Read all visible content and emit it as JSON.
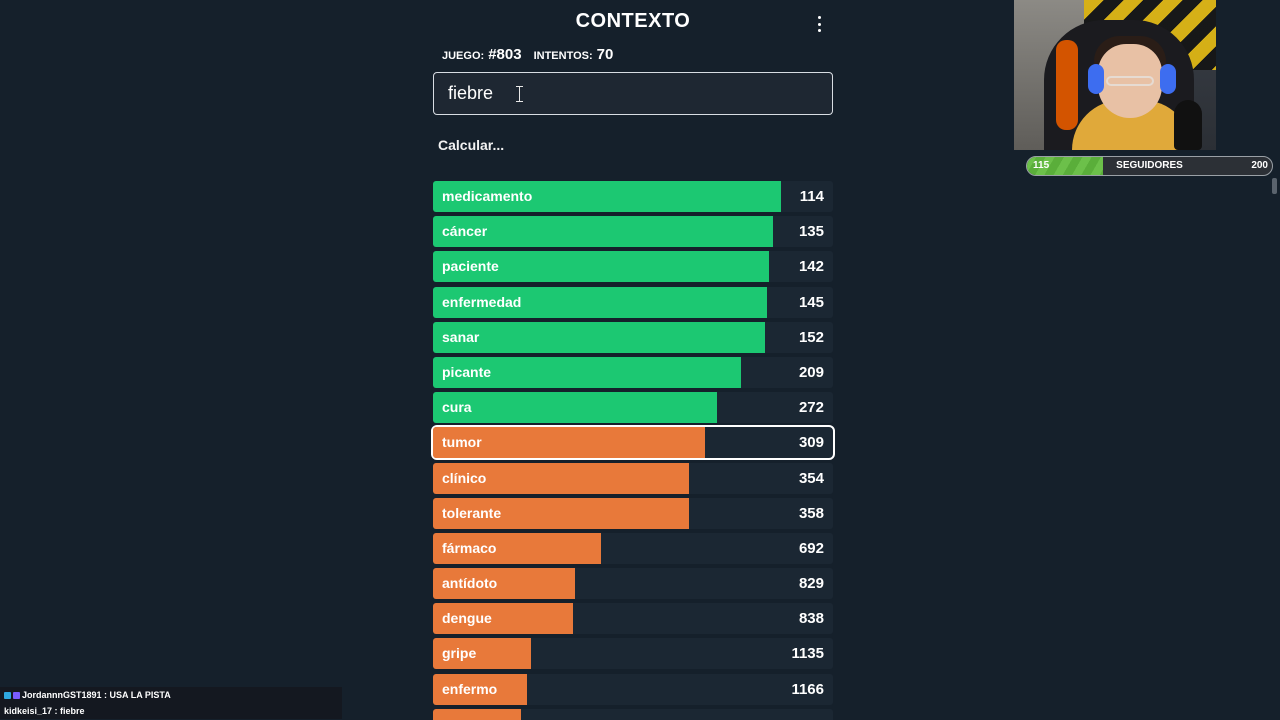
{
  "header": {
    "title": "CONTEXTO"
  },
  "stats": {
    "game_label": "JUEGO:",
    "game_number": "#803",
    "attempts_label": "INTENTOS:",
    "attempts_value": "70"
  },
  "input": {
    "value": "fiebre "
  },
  "status_text": "Calcular...",
  "colors": {
    "green": "#1cc872",
    "orange": "#e8793a",
    "track": "#1b2733",
    "background": "#15202b"
  },
  "guesses": [
    {
      "word": "medicamento",
      "rank": "114",
      "fill": 0.87,
      "color": "green"
    },
    {
      "word": "cáncer",
      "rank": "135",
      "fill": 0.85,
      "color": "green"
    },
    {
      "word": "paciente",
      "rank": "142",
      "fill": 0.84,
      "color": "green"
    },
    {
      "word": "enfermedad",
      "rank": "145",
      "fill": 0.835,
      "color": "green"
    },
    {
      "word": "sanar",
      "rank": "152",
      "fill": 0.83,
      "color": "green"
    },
    {
      "word": "picante",
      "rank": "209",
      "fill": 0.77,
      "color": "green"
    },
    {
      "word": "cura",
      "rank": "272",
      "fill": 0.71,
      "color": "green"
    },
    {
      "word": "tumor",
      "rank": "309",
      "fill": 0.68,
      "color": "orange",
      "current": true
    },
    {
      "word": "clínico",
      "rank": "354",
      "fill": 0.64,
      "color": "orange"
    },
    {
      "word": "tolerante",
      "rank": "358",
      "fill": 0.64,
      "color": "orange"
    },
    {
      "word": "fármaco",
      "rank": "692",
      "fill": 0.42,
      "color": "orange"
    },
    {
      "word": "antídoto",
      "rank": "829",
      "fill": 0.355,
      "color": "orange"
    },
    {
      "word": "dengue",
      "rank": "838",
      "fill": 0.35,
      "color": "orange"
    },
    {
      "word": "gripe",
      "rank": "1135",
      "fill": 0.245,
      "color": "orange"
    },
    {
      "word": "enfermo",
      "rank": "1166",
      "fill": 0.235,
      "color": "orange"
    },
    {
      "word": "",
      "rank": "",
      "fill": 0.22,
      "color": "orange"
    }
  ],
  "followers": {
    "min": "115",
    "label": "SEGUIDORES",
    "max": "200",
    "progress": 0.31
  },
  "chat": [
    {
      "user": "JordannnGST1891",
      "text": "USA LA PISTA",
      "badge_colors": [
        "#2ea8e0",
        "#7a5cff"
      ]
    },
    {
      "user": "kidkeisi_17",
      "text": "fiebre",
      "badge_colors": []
    }
  ]
}
